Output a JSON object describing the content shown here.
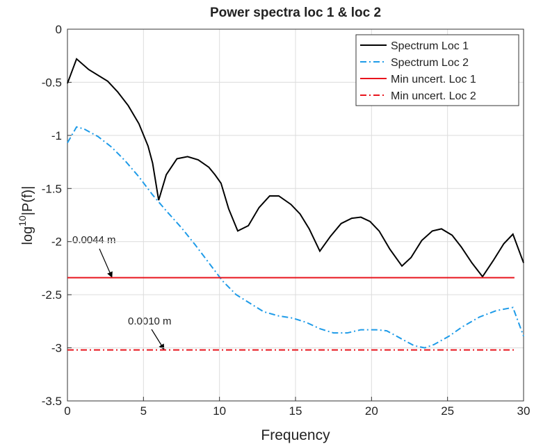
{
  "chart_data": {
    "type": "line",
    "title": "Power spectra loc 1 & loc 2",
    "xlabel": "Frequency",
    "ylabel": [
      "log",
      "10",
      "|P(f)|"
    ],
    "xlim": [
      0,
      30
    ],
    "xticks": [
      0,
      5,
      10,
      15,
      20,
      25,
      30
    ],
    "ylim": [
      -3.5,
      0
    ],
    "yticks": [
      -3.5,
      -3,
      -2.5,
      -2,
      -1.5,
      -1,
      -0.5,
      0
    ],
    "grid": true,
    "legend": "upper right",
    "annotations": [
      "0.0044 m",
      "0.0010 m"
    ],
    "series": [
      {
        "name": "Spectrum Loc 1",
        "color": "#000000",
        "style": "solid",
        "x": [
          0,
          0.6,
          1.4,
          2.65,
          3.3,
          4.0,
          4.7,
          5.3,
          5.6,
          6.0,
          6.5,
          7.2,
          7.9,
          8.6,
          9.3,
          9.7,
          10.1,
          10.6,
          11.2,
          11.9,
          12.6,
          13.3,
          13.9,
          14.7,
          15.3,
          15.9,
          16.6,
          17.3,
          18.0,
          18.7,
          19.3,
          19.9,
          20.5,
          21.2,
          22.0,
          22.6,
          23.3,
          24.0,
          24.6,
          25.3,
          25.9,
          26.6,
          27.3,
          28.0,
          28.7,
          29.3,
          30
        ],
        "values": [
          -0.51,
          -0.28,
          -0.38,
          -0.49,
          -0.59,
          -0.72,
          -0.89,
          -1.1,
          -1.26,
          -1.61,
          -1.37,
          -1.22,
          -1.2,
          -1.23,
          -1.3,
          -1.37,
          -1.45,
          -1.69,
          -1.9,
          -1.85,
          -1.68,
          -1.57,
          -1.57,
          -1.65,
          -1.74,
          -1.88,
          -2.09,
          -1.95,
          -1.83,
          -1.78,
          -1.77,
          -1.81,
          -1.9,
          -2.07,
          -2.23,
          -2.15,
          -1.99,
          -1.9,
          -1.88,
          -1.94,
          -2.05,
          -2.2,
          -2.33,
          -2.18,
          -2.02,
          -1.93,
          -2.2
        ]
      },
      {
        "name": "Spectrum Loc 2",
        "color": "#1e9be8",
        "style": "dashdot",
        "x": [
          0,
          0.6,
          1.1,
          2.0,
          2.9,
          3.8,
          4.7,
          5.6,
          6.5,
          7.5,
          8.4,
          9.3,
          10.2,
          11.1,
          12.0,
          12.9,
          13.9,
          14.8,
          15.7,
          16.6,
          17.5,
          18.4,
          19.3,
          20.3,
          21.0,
          21.9,
          22.8,
          23.5,
          24.1,
          25.1,
          26.0,
          27.1,
          28.2,
          29.3,
          30
        ],
        "values": [
          -1.07,
          -0.92,
          -0.94,
          -1.01,
          -1.11,
          -1.24,
          -1.39,
          -1.56,
          -1.71,
          -1.87,
          -2.03,
          -2.2,
          -2.37,
          -2.5,
          -2.58,
          -2.66,
          -2.7,
          -2.72,
          -2.76,
          -2.82,
          -2.86,
          -2.86,
          -2.83,
          -2.83,
          -2.84,
          -2.91,
          -2.98,
          -3.0,
          -2.97,
          -2.89,
          -2.8,
          -2.71,
          -2.65,
          -2.62,
          -2.89
        ]
      },
      {
        "name": "Min uncert. Loc 1",
        "color": "#e8141c",
        "style": "solid",
        "x": [
          0,
          29.4
        ],
        "values": [
          -2.34,
          -2.34
        ]
      },
      {
        "name": "Min uncert. Loc 2",
        "color": "#e8141c",
        "style": "dashdot",
        "x": [
          0,
          29.4
        ],
        "values": [
          -3.02,
          -3.02
        ]
      }
    ]
  }
}
